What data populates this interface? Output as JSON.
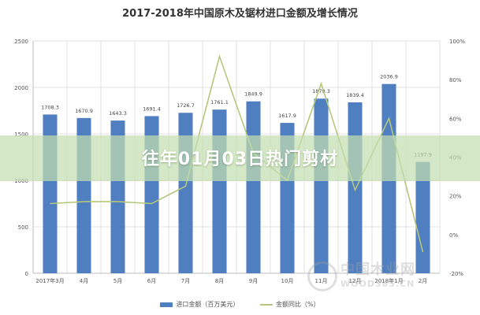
{
  "chart_data": {
    "type": "bar",
    "title": "2017-2018年中国原木及锯材进口金额及增长情况",
    "categories": [
      "2017年3月",
      "4月",
      "5月",
      "6月",
      "7月",
      "8月",
      "9月",
      "10月",
      "11月",
      "12月",
      "2018年1月",
      "2月"
    ],
    "series": [
      {
        "name": "进口金额（百万美元）",
        "type": "bar",
        "axis": "left",
        "color": "#4f7fc0",
        "values": [
          1708.3,
          1670.9,
          1643.3,
          1691.4,
          1726.7,
          1761.1,
          1849.9,
          1617.9,
          1879.3,
          1839.4,
          2036.9,
          1197.9
        ]
      },
      {
        "name": "金额同比（%）",
        "type": "line",
        "axis": "right",
        "color": "#b5c77c",
        "values": [
          16,
          17,
          17,
          16,
          25,
          92,
          42,
          28,
          78,
          23,
          60,
          -9
        ]
      }
    ],
    "y_left": {
      "range": [
        0,
        2500
      ],
      "ticks": [
        "0",
        "500",
        "1000",
        "1500",
        "2000",
        "2500"
      ]
    },
    "y_right": {
      "range": [
        -20,
        100
      ],
      "ticks": [
        "-20%",
        "0%",
        "20%",
        "40%",
        "60%",
        "80%",
        "100%"
      ]
    },
    "grid": true,
    "legend_position": "bottom"
  },
  "overlay": {
    "banner_text": "往年01月03日热门剪材"
  },
  "watermark": {
    "name": "中国木业网",
    "url": "WOOD365.CN"
  }
}
